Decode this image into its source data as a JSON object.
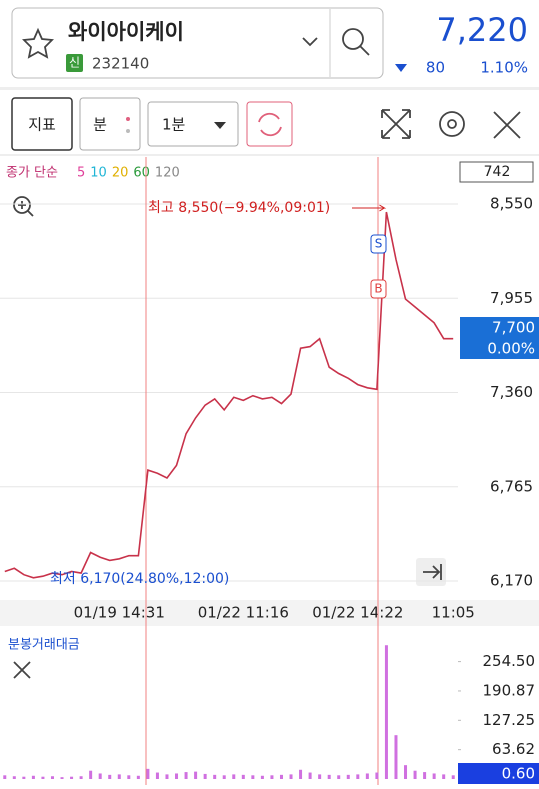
{
  "header": {
    "name": "와이아이케이",
    "badge": "신",
    "code": "232140",
    "price": "7,220",
    "change": "80",
    "change_pct": "1.10%"
  },
  "toolbar": {
    "indicator": "지표",
    "period_type": "분",
    "interval": "1분"
  },
  "chart_data": [
    {
      "type": "line",
      "ma_label": "종가 단순",
      "ma_periods": [
        {
          "name": "5",
          "color": "#e0409a"
        },
        {
          "name": "10",
          "color": "#1fb5d6"
        },
        {
          "name": "20",
          "color": "#e0b000"
        },
        {
          "name": "60",
          "color": "#2a9a3a"
        },
        {
          "name": "120",
          "color": "#888888"
        }
      ],
      "visible_count": "742",
      "high_label": "최고 8,550(−9.94%,09:01)",
      "low_label": "최저 6,170(24.80%,12:00)",
      "signal_labels": [
        "S",
        "B"
      ],
      "last_price": "7,700",
      "last_change": "0.00%",
      "color": "#c8324a",
      "categories": [
        null,
        null,
        null,
        null,
        null,
        null,
        null,
        null,
        null,
        null,
        null,
        null,
        "01/19 14:31",
        null,
        null,
        null,
        null,
        null,
        null,
        null,
        null,
        null,
        null,
        null,
        null,
        "01/22 11:16",
        null,
        null,
        null,
        null,
        null,
        null,
        null,
        null,
        null,
        null,
        null,
        "01/22 14:22",
        null,
        null,
        null,
        null,
        null,
        null,
        null,
        null,
        null,
        "11:05"
      ],
      "values": [
        6230,
        6250,
        6210,
        6190,
        6200,
        6220,
        6210,
        6230,
        6220,
        6350,
        6320,
        6300,
        6310,
        6330,
        6330,
        6870,
        6850,
        6820,
        6900,
        7100,
        7200,
        7280,
        7320,
        7250,
        7330,
        7310,
        7340,
        7320,
        7330,
        7290,
        7350,
        7640,
        7650,
        7700,
        7520,
        7480,
        7450,
        7410,
        7390,
        7380,
        8500,
        8200,
        7950,
        7900,
        7850,
        7800,
        7700,
        7700
      ],
      "ylim": [
        6050,
        8847
      ],
      "yticks": [
        {
          "value": 8550,
          "label": "8,550"
        },
        {
          "value": 7955,
          "label": "7,955"
        },
        {
          "value": 7360,
          "label": "7,360"
        },
        {
          "value": 6765,
          "label": "6,765"
        },
        {
          "value": 6170,
          "label": "6,170"
        }
      ],
      "grid": true
    },
    {
      "type": "bar",
      "title": "분봉거래대금",
      "color": "#d070e0",
      "last_value": "0.60",
      "values": [
        8,
        6,
        5,
        7,
        5,
        6,
        4,
        5,
        6,
        18,
        12,
        9,
        10,
        8,
        7,
        22,
        14,
        10,
        12,
        15,
        16,
        11,
        9,
        8,
        10,
        9,
        8,
        7,
        8,
        9,
        10,
        20,
        14,
        10,
        9,
        8,
        9,
        10,
        12,
        14,
        290,
        95,
        30,
        18,
        15,
        12,
        10,
        8
      ],
      "ylim": [
        0,
        323
      ],
      "yticks": [
        {
          "value": 254.5,
          "label": "254.50"
        },
        190.87,
        127.25,
        63.62
      ]
    }
  ]
}
